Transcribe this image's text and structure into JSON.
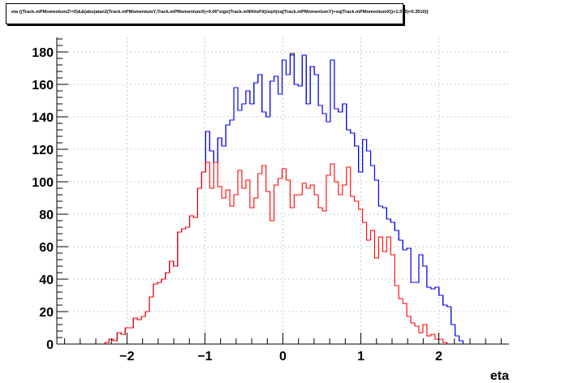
{
  "chart_data": {
    "type": "histogram",
    "title": "eta {(Track.mPMomentumZ!=0)&&(abs(atan2(Track.mPMomentumY,Track.mPMomentumX)+0.06*sign(Track.mNHitsFit)/sqrt(sq(Track.mPMomentumY)+sq(Track.mPMomentumX))+1.570)<0.3510)}",
    "xlabel": "eta",
    "ylabel": "",
    "xlim": [
      -2.9,
      2.9
    ],
    "ylim": [
      0,
      189
    ],
    "xticks": [
      "−2",
      "−1",
      "0",
      "1",
      "2"
    ],
    "xtick_values": [
      -2,
      -1,
      0,
      1,
      2
    ],
    "yticks": [
      "0",
      "20",
      "40",
      "60",
      "80",
      "100",
      "120",
      "140",
      "160",
      "180"
    ],
    "ytick_values": [
      0,
      20,
      40,
      60,
      80,
      100,
      120,
      140,
      160,
      180
    ],
    "grid": true,
    "bin_edges_start": -2.9,
    "bin_width": 0.0516,
    "colors": {
      "black": "#000000",
      "blue": "#0000ff",
      "red": "#ff0000",
      "grid": "#c8c8c8"
    },
    "series": [
      {
        "color": "#000000",
        "values": [
          0,
          0,
          0,
          0,
          0,
          0,
          0,
          0,
          0,
          0,
          0,
          0,
          1,
          3,
          2,
          7,
          6,
          10,
          10,
          16,
          15,
          17,
          20,
          29,
          37,
          38,
          40,
          44,
          51,
          48,
          69,
          71,
          72,
          79,
          78,
          96,
          106,
          131,
          119,
          112,
          127,
          122,
          135,
          138,
          158,
          144,
          148,
          156,
          148,
          161,
          166,
          143,
          140,
          162,
          165,
          154,
          175,
          166,
          179,
          160,
          159,
          178,
          148,
          171,
          166,
          147,
          142,
          137,
          175,
          145,
          143,
          148,
          132,
          130,
          122,
          106,
          126,
          119,
          110,
          101,
          85,
          84,
          77,
          75,
          70,
          64,
          58,
          59,
          38,
          38,
          55,
          48,
          35,
          34,
          35,
          30,
          24,
          23,
          12,
          5,
          2,
          0,
          0,
          0,
          0,
          0,
          0,
          0,
          0,
          0,
          0,
          0
        ]
      },
      {
        "color": "#0000ff",
        "values": [
          0,
          0,
          0,
          0,
          0,
          0,
          0,
          0,
          0,
          0,
          0,
          0,
          1,
          3,
          2,
          7,
          6,
          10,
          10,
          16,
          15,
          17,
          20,
          29,
          37,
          38,
          40,
          44,
          51,
          48,
          69,
          71,
          72,
          79,
          78,
          96,
          106,
          131,
          119,
          112,
          127,
          122,
          135,
          138,
          158,
          144,
          148,
          156,
          148,
          161,
          166,
          143,
          140,
          162,
          165,
          154,
          175,
          166,
          178,
          160,
          159,
          178,
          148,
          171,
          166,
          147,
          142,
          137,
          175,
          145,
          143,
          148,
          132,
          130,
          122,
          106,
          126,
          119,
          110,
          101,
          85,
          84,
          77,
          75,
          70,
          64,
          58,
          59,
          38,
          38,
          55,
          48,
          35,
          34,
          35,
          30,
          24,
          23,
          12,
          5,
          2,
          0,
          0,
          0,
          0,
          0,
          0,
          0,
          0,
          0,
          0,
          0
        ]
      },
      {
        "color": "#ff0000",
        "values": [
          0,
          0,
          0,
          0,
          0,
          0,
          0,
          0,
          0,
          0,
          0,
          0,
          1,
          3,
          2,
          7,
          6,
          10,
          10,
          16,
          15,
          17,
          20,
          29,
          37,
          38,
          40,
          44,
          51,
          48,
          69,
          71,
          72,
          79,
          78,
          96,
          106,
          112,
          96,
          112,
          97,
          90,
          95,
          85,
          92,
          107,
          96,
          101,
          84,
          90,
          105,
          110,
          94,
          76,
          98,
          102,
          108,
          101,
          84,
          92,
          92,
          99,
          96,
          98,
          92,
          84,
          82,
          104,
          111,
          100,
          92,
          98,
          109,
          91,
          88,
          83,
          75,
          64,
          70,
          53,
          66,
          57,
          66,
          55,
          36,
          28,
          25,
          17,
          13,
          11,
          7,
          12,
          5,
          6,
          3,
          3,
          1,
          0,
          0,
          0,
          0,
          0,
          0,
          0,
          0,
          0,
          0,
          0,
          0,
          0,
          0,
          0
        ]
      }
    ]
  }
}
